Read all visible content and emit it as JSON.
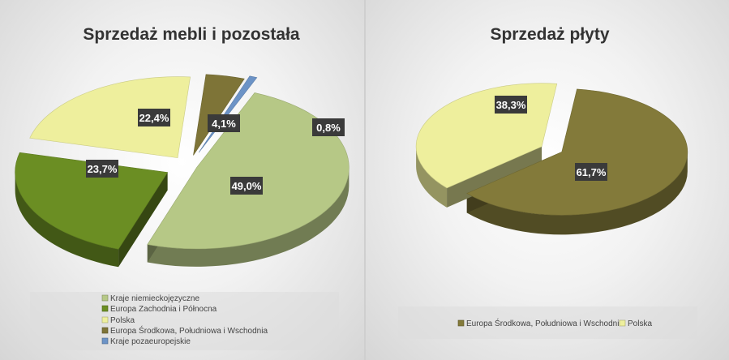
{
  "chart_data": [
    {
      "type": "pie",
      "title": "Sprzedaż mebli i pozostała",
      "legend_position": "bottom",
      "series": [
        {
          "name": "Kraje niemieckojęzyczne",
          "value": 49.0,
          "label": "49,0%",
          "color": "#b6c886"
        },
        {
          "name": "Europa Zachodnia i Północna",
          "value": 23.7,
          "label": "23,7%",
          "color": "#6b8e23"
        },
        {
          "name": "Polska",
          "value": 22.4,
          "label": "22,4%",
          "color": "#eeef9d"
        },
        {
          "name": "Europa Środkowa, Południowa i Wschodnia",
          "value": 4.1,
          "label": "4,1%",
          "color": "#7e7437"
        },
        {
          "name": "Kraje pozaeuropejskie",
          "value": 0.8,
          "label": "0,8%",
          "color": "#6c93c6"
        }
      ]
    },
    {
      "type": "pie",
      "title": "Sprzedaż płyty",
      "legend_position": "bottom",
      "series": [
        {
          "name": "Europa Środkowa, Południowa i Wschodnia",
          "value": 61.7,
          "label": "61,7%",
          "color": "#837a3a"
        },
        {
          "name": "Polska",
          "value": 38.3,
          "label": "38,3%",
          "color": "#eeef9d"
        }
      ]
    }
  ],
  "colors": {
    "label_box": "#3a3a3a"
  }
}
